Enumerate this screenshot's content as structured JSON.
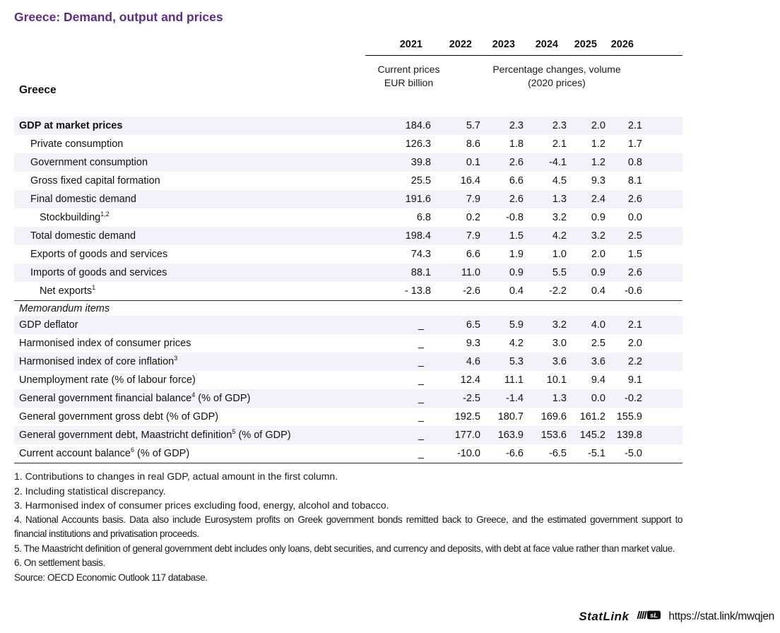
{
  "page": {
    "title": "Greece: Demand, output and prices",
    "accent_color": "#5c2d91",
    "shade_color": "#f2f2fa"
  },
  "table": {
    "region_label": "Greece",
    "years": [
      "2021",
      "2022",
      "2023",
      "2024",
      "2025",
      "2026"
    ],
    "first_col_header_line1": "Current prices",
    "first_col_header_line2": "EUR billion",
    "volume_header_line1": "Percentage changes, volume",
    "volume_header_line2": "(2020 prices)",
    "rows": [
      {
        "label": "GDP at market prices",
        "sup": "",
        "suffix": "",
        "bold": true,
        "indent": 0,
        "values": [
          "184.6",
          "5.7",
          "2.3",
          "2.3",
          "2.0",
          "2.1"
        ]
      },
      {
        "label": "Private consumption",
        "sup": "",
        "suffix": "",
        "indent": 1,
        "values": [
          "126.3",
          "8.6",
          "1.8",
          "2.1",
          "1.2",
          "1.7"
        ]
      },
      {
        "label": "Government consumption",
        "sup": "",
        "suffix": "",
        "indent": 1,
        "values": [
          "39.8",
          "0.1",
          "2.6",
          "-4.1",
          "1.2",
          "0.8"
        ]
      },
      {
        "label": "Gross fixed capital formation",
        "sup": "",
        "suffix": "",
        "indent": 1,
        "values": [
          "25.5",
          "16.4",
          "6.6",
          "4.5",
          "9.3",
          "8.1"
        ]
      },
      {
        "label": "Final domestic demand",
        "sup": "",
        "suffix": "",
        "indent": 1,
        "values": [
          "191.6",
          "7.9",
          "2.6",
          "1.3",
          "2.4",
          "2.6"
        ]
      },
      {
        "label": "Stockbuilding",
        "sup": "1,2",
        "suffix": "",
        "indent": 2,
        "values": [
          "6.8",
          "0.2",
          "-0.8",
          "3.2",
          "0.9",
          "0.0"
        ]
      },
      {
        "label": "Total domestic demand",
        "sup": "",
        "suffix": "",
        "indent": 1,
        "values": [
          "198.4",
          "7.9",
          "1.5",
          "4.2",
          "3.2",
          "2.5"
        ]
      },
      {
        "label": "Exports of goods and services",
        "sup": "",
        "suffix": "",
        "indent": 1,
        "values": [
          "74.3",
          "6.6",
          "1.9",
          "1.0",
          "2.0",
          "1.5"
        ]
      },
      {
        "label": "Imports of goods and services",
        "sup": "",
        "suffix": "",
        "indent": 1,
        "values": [
          "88.1",
          "11.0",
          "0.9",
          "5.5",
          "0.9",
          "2.6"
        ]
      },
      {
        "label": "Net exports",
        "sup": "1",
        "suffix": "",
        "indent": 2,
        "values": [
          "- 13.8",
          "-2.6",
          "0.4",
          "-2.2",
          "0.4",
          "-0.6"
        ]
      },
      {
        "label": "Memorandum items",
        "section": true
      },
      {
        "label": "GDP deflator",
        "sup": "",
        "suffix": "",
        "indent": 0,
        "values": [
          "_",
          "6.5",
          "5.9",
          "3.2",
          "4.0",
          "2.1"
        ]
      },
      {
        "label": "Harmonised index of consumer prices",
        "sup": "",
        "suffix": "",
        "indent": 0,
        "values": [
          "_",
          "9.3",
          "4.2",
          "3.0",
          "2.5",
          "2.0"
        ]
      },
      {
        "label": "Harmonised index of core inflation",
        "sup": "3",
        "suffix": "",
        "indent": 0,
        "values": [
          "_",
          "4.6",
          "5.3",
          "3.6",
          "3.6",
          "2.2"
        ]
      },
      {
        "label": "Unemployment rate (% of labour force)",
        "sup": "",
        "suffix": "",
        "indent": 0,
        "values": [
          "_",
          "12.4",
          "11.1",
          "10.1",
          "9.4",
          "9.1"
        ]
      },
      {
        "label": "General government financial balance",
        "sup": "4",
        "suffix": " (% of GDP)",
        "indent": 0,
        "values": [
          "_",
          "-2.5",
          "-1.4",
          "1.3",
          "0.0",
          "-0.2"
        ]
      },
      {
        "label": "General government gross debt (% of GDP)",
        "sup": "",
        "suffix": "",
        "indent": 0,
        "values": [
          "_",
          "192.5",
          "180.7",
          "169.6",
          "161.2",
          "155.9"
        ]
      },
      {
        "label": "General government debt, Maastricht definition",
        "sup": "5",
        "suffix": " (% of GDP)",
        "indent": 0,
        "values": [
          "_",
          "177.0",
          "163.9",
          "153.6",
          "145.2",
          "139.8"
        ]
      },
      {
        "label": "Current account balance",
        "sup": "6",
        "suffix": " (% of GDP)",
        "indent": 0,
        "values": [
          "_",
          "-10.0",
          "-6.6",
          "-6.5",
          "-5.1",
          "-5.0"
        ]
      }
    ]
  },
  "footnotes": [
    {
      "text": "1. Contributions to changes in real GDP, actual amount in the first column.",
      "condensed": false,
      "justify": false
    },
    {
      "text": "2. Including statistical discrepancy.",
      "condensed": false,
      "justify": false
    },
    {
      "text": "3. Harmonised index of consumer prices excluding food, energy, alcohol and tobacco.",
      "condensed": false,
      "justify": false
    },
    {
      "text": "4. National Accounts basis. Data also include Eurosystem profits on Greek government bonds remitted back to Greece, and the estimated government support to financial institutions and privatisation proceeds.",
      "condensed": true,
      "justify": true
    },
    {
      "text": "5. The Maastricht definition of general government debt includes only loans, debt securities, and currency and deposits, with debt at face value rather than market value.",
      "condensed": true,
      "justify": false
    },
    {
      "text": "6. On settlement basis.",
      "condensed": true,
      "justify": false
    }
  ],
  "source": "Source: OECD Economic Outlook 117 database.",
  "statlink": {
    "label_part1": "Stat",
    "label_part2": "Link",
    "icon": "statlink-icon",
    "url": "https://stat.link/mwqjen"
  }
}
